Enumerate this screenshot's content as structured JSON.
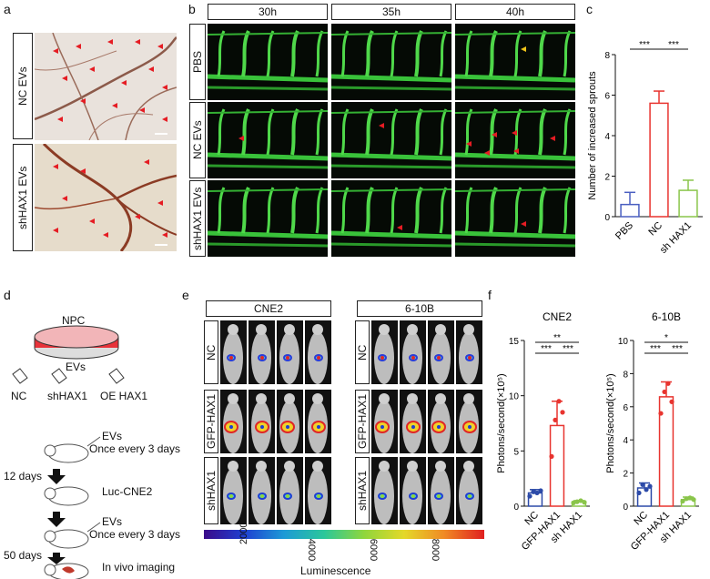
{
  "panels": {
    "a": "a",
    "b": "b",
    "c": "c",
    "d": "d",
    "e": "e",
    "f": "f"
  },
  "panel_a": {
    "rows": [
      "NC EVs",
      "shHAX1 EVs"
    ]
  },
  "panel_b": {
    "times": [
      "30h",
      "35h",
      "40h"
    ],
    "rows": [
      "PBS",
      "NC EVs",
      "shHAX1 EVs"
    ]
  },
  "panel_d": {
    "npc": "NPC",
    "evs": "EVs",
    "groups": [
      "NC",
      "shHAX1",
      "OE HAX1"
    ],
    "step1": "EVs\nOnce every 3 days",
    "days12": "12 days",
    "step2": "Luc-CNE2",
    "step3": "EVs\nOnce every 3 days",
    "days50": "50 days",
    "step4": "In vivo imaging"
  },
  "panel_e": {
    "cell_lines": [
      "CNE2",
      "6-10B"
    ],
    "rows": [
      "NC",
      "GFP-HAX1",
      "shHAX1"
    ],
    "colorbar_ticks": [
      "2000",
      "4000",
      "6000",
      "8000"
    ],
    "colorbar_label": "Luminescence"
  },
  "chart_data": [
    {
      "type": "bar",
      "id": "c",
      "title": "",
      "ylabel": "Number of increased sprouts",
      "categories": [
        "PBS",
        "NC",
        "sh HAX1"
      ],
      "values": [
        0.6,
        5.6,
        1.3
      ],
      "errors": [
        0.6,
        0.6,
        0.5
      ],
      "colors": [
        "#4a5fc1",
        "#e8342f",
        "#8ac54a"
      ],
      "ylim": [
        0,
        8
      ],
      "yticks": [
        "0",
        "2",
        "4",
        "6",
        "8"
      ],
      "significance": [
        "***",
        "***"
      ]
    },
    {
      "type": "bar",
      "id": "f1",
      "title": "CNE2",
      "ylabel": "Photons/second(×10⁵)",
      "categories": [
        "NC",
        "GFP-HAX1",
        "sh HAX1"
      ],
      "values": [
        1.2,
        7.3,
        0.4
      ],
      "errors": [
        0.3,
        2.2,
        0.1
      ],
      "colors": [
        "#2c4aa8",
        "#e8342f",
        "#8ac54a"
      ],
      "ylim": [
        0,
        15
      ],
      "yticks": [
        "0",
        "5",
        "10",
        "15"
      ],
      "significance": [
        "**",
        "***",
        "***"
      ]
    },
    {
      "type": "bar",
      "id": "f2",
      "title": "6-10B",
      "ylabel": "Photons/second(×10⁵)",
      "categories": [
        "NC",
        "GFP-HAX1",
        "sh HAX1"
      ],
      "values": [
        1.1,
        6.6,
        0.4
      ],
      "errors": [
        0.3,
        0.9,
        0.15
      ],
      "colors": [
        "#2c4aa8",
        "#e8342f",
        "#8ac54a"
      ],
      "ylim": [
        0,
        10
      ],
      "yticks": [
        "0",
        "2",
        "4",
        "6",
        "8",
        "10"
      ],
      "significance": [
        "*",
        "***",
        "***"
      ]
    }
  ]
}
